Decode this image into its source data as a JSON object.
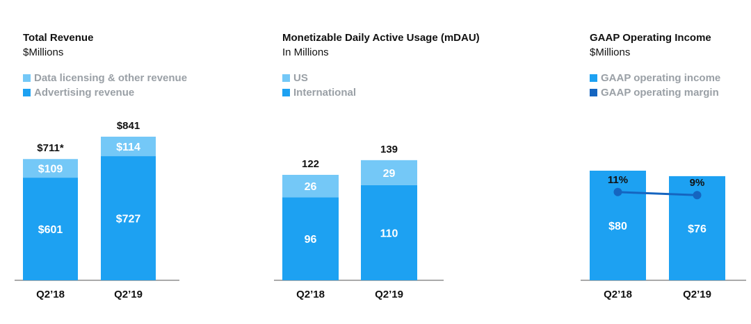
{
  "colors": {
    "light_blue": "#74c8f7",
    "blue": "#1da1f2",
    "dark_blue": "#1565c0",
    "axis": "#555555",
    "legend_text": "#9aa0a6"
  },
  "chart_data": [
    {
      "type": "bar",
      "stacked": true,
      "title": "Total Revenue",
      "subtitle": "$Millions",
      "categories": [
        "Q2’18",
        "Q2’19"
      ],
      "series": [
        {
          "name": "Advertising revenue",
          "color_key": "blue",
          "values": [
            601,
            727
          ],
          "labels": [
            "$601",
            "$727"
          ]
        },
        {
          "name": "Data licensing & other revenue",
          "color_key": "light_blue",
          "values": [
            109,
            114
          ],
          "labels": [
            "$109",
            "$114"
          ]
        }
      ],
      "legend": [
        "Data licensing & other revenue",
        "Advertising revenue"
      ],
      "legend_colors": [
        "light_blue",
        "blue"
      ],
      "totals": [
        "$711*",
        "$841"
      ],
      "ylim": [
        0,
        841
      ]
    },
    {
      "type": "bar",
      "stacked": true,
      "title": "Monetizable Daily Active Usage (mDAU)",
      "subtitle": "In Millions",
      "categories": [
        "Q2’18",
        "Q2’19"
      ],
      "series": [
        {
          "name": "International",
          "color_key": "blue",
          "values": [
            96,
            110
          ],
          "labels": [
            "96",
            "110"
          ]
        },
        {
          "name": "US",
          "color_key": "light_blue",
          "values": [
            26,
            29
          ],
          "labels": [
            "26",
            "29"
          ]
        }
      ],
      "legend": [
        "US",
        "International"
      ],
      "legend_colors": [
        "light_blue",
        "blue"
      ],
      "totals": [
        "122",
        "139"
      ],
      "ylim": [
        0,
        240
      ]
    },
    {
      "type": "bar",
      "stacked": false,
      "title": "GAAP Operating Income",
      "subtitle": "$Millions",
      "categories": [
        "Q2’18",
        "Q2’19"
      ],
      "series": [
        {
          "name": "GAAP operating income",
          "color_key": "blue",
          "values": [
            80,
            76
          ],
          "labels": [
            "$80",
            "$76"
          ]
        }
      ],
      "line_series": {
        "name": "GAAP operating margin",
        "color_key": "dark_blue",
        "values": [
          11,
          9
        ],
        "labels": [
          "11%",
          "9%"
        ]
      },
      "legend": [
        "GAAP operating income",
        "GAAP operating margin"
      ],
      "legend_colors": [
        "blue",
        "dark_blue"
      ],
      "ylim": [
        0,
        160
      ]
    }
  ]
}
